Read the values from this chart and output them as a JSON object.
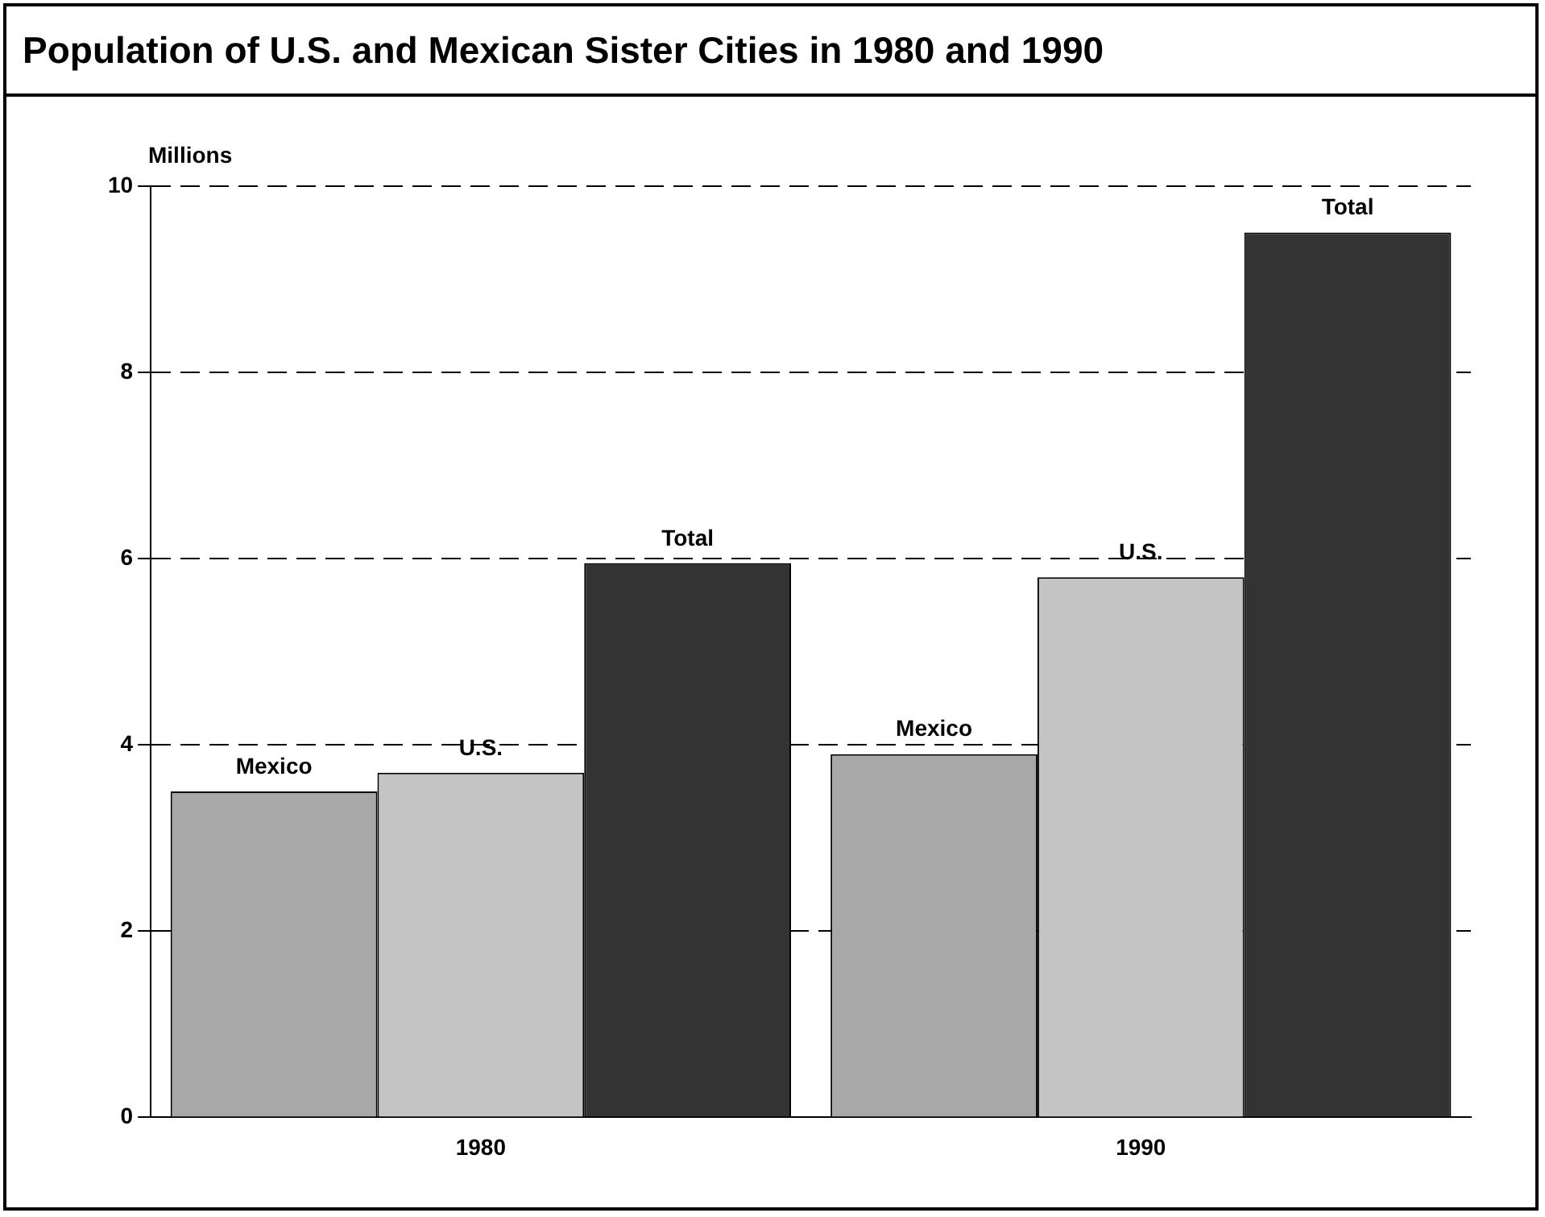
{
  "chart_data": {
    "type": "bar",
    "title": "Population of U.S. and Mexican Sister Cities in 1980 and 1990",
    "ylabel": "Millions",
    "categories": [
      "1980",
      "1990"
    ],
    "series": [
      {
        "name": "Mexico",
        "color": "#a8a8a8",
        "values": [
          3.5,
          3.9
        ]
      },
      {
        "name": "U.S.",
        "color": "#c4c4c4",
        "values": [
          3.7,
          5.8
        ]
      },
      {
        "name": "Total",
        "color": "#333333",
        "values": [
          5.95,
          9.5
        ]
      }
    ],
    "ylim": [
      0,
      10
    ],
    "yticks": [
      0,
      2,
      4,
      6,
      8,
      10
    ],
    "grid": "y",
    "legend": false
  }
}
